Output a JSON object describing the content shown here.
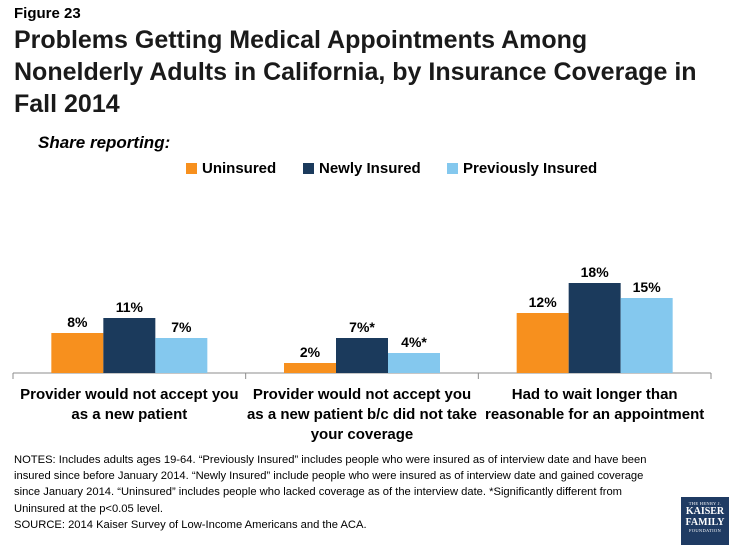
{
  "figure_label": "Figure 23",
  "notes": "NOTES: Includes adults ages 19-64. “Previously Insured” includes people who were insured as of interview date and have been insured since before January 2014. “Newly Insured” include people who were insured as of interview date and gained coverage since January 2014. “Uninsured” includes people who lacked coverage as of the interview date. *Significantly different from Uninsured at the p<0.05 level.",
  "source": "SOURCE: 2014 Kaiser Survey of Low-Income Americans and the ACA.",
  "logo": {
    "line1": "THE HENRY J.",
    "line2": "KAISER",
    "line3": "FAMILY",
    "line4": "FOUNDATION"
  },
  "chart_data": {
    "type": "bar",
    "title": "Problems Getting Medical Appointments Among Nonelderly Adults in California, by Insurance Coverage in Fall 2014",
    "subtitle": "Share reporting:",
    "categories": [
      "Provider would not accept you as a new patient",
      "Provider would not accept you as a new patient b/c did not take your coverage",
      "Had to wait longer than reasonable for an appointment"
    ],
    "series": [
      {
        "name": "Uninsured",
        "color": "#f7901e",
        "values": [
          8,
          2,
          12
        ],
        "labels": [
          "8%",
          "2%",
          "12%"
        ]
      },
      {
        "name": "Newly Insured",
        "color": "#1b3a5c",
        "values": [
          11,
          7,
          18
        ],
        "labels": [
          "11%",
          "7%*",
          "18%"
        ]
      },
      {
        "name": "Previously Insured",
        "color": "#84c8ee",
        "values": [
          7,
          4,
          15
        ],
        "labels": [
          "7%",
          "4%*",
          "15%"
        ]
      }
    ],
    "ylim": [
      0,
      30
    ],
    "grid": false,
    "legend_position": "top"
  }
}
